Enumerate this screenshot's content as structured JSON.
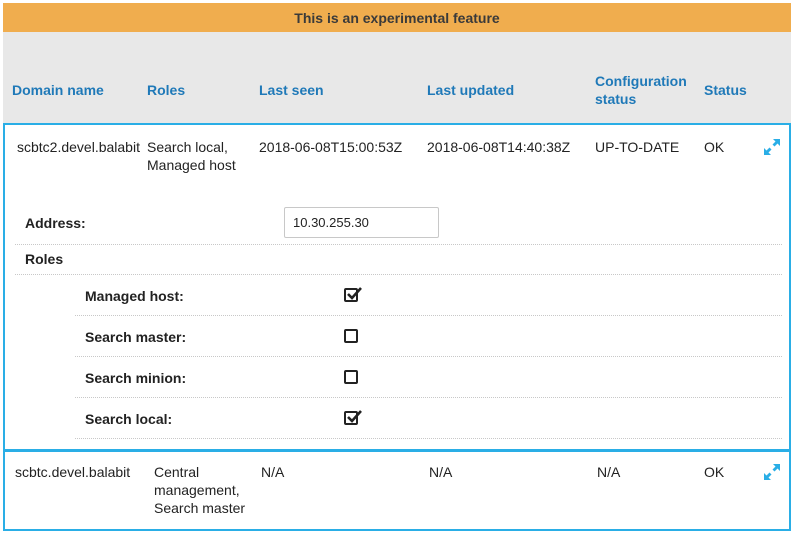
{
  "banner": {
    "text": "This is an experimental feature"
  },
  "table": {
    "headers": {
      "domain_name": "Domain name",
      "roles": "Roles",
      "last_seen": "Last seen",
      "last_updated": "Last updated",
      "config_line1": "Configuration",
      "config_line2": "status",
      "status": "Status"
    },
    "rows": [
      {
        "domain": "scbtc2.devel.balabit",
        "roles_line1": "Search local,",
        "roles_line2": "Managed host",
        "last_seen": "2018-06-08T15:00:53Z",
        "last_updated": "2018-06-08T14:40:38Z",
        "config_status": "UP-TO-DATE",
        "status": "OK",
        "expanded": true
      },
      {
        "domain": "scbtc.devel.balabit",
        "roles_line1": "Central",
        "roles_line2": "management,",
        "roles_line3": "Search master",
        "last_seen": "N/A",
        "last_updated": "N/A",
        "config_status": "N/A",
        "status": "OK",
        "expanded": false
      }
    ]
  },
  "detail": {
    "address_label": "Address:",
    "address_value": "10.30.255.30",
    "roles_heading": "Roles",
    "roles": [
      {
        "label": "Managed host:",
        "checked": true
      },
      {
        "label": "Search master:",
        "checked": false
      },
      {
        "label": "Search minion:",
        "checked": false
      },
      {
        "label": "Search local:",
        "checked": true
      }
    ]
  },
  "colors": {
    "banner": "#f0ad4e",
    "header_bg": "#e8e8e8",
    "header_text": "#1f79b8",
    "row_border": "#2aaee6",
    "expand_icon": "#2aaee6"
  },
  "icons": {
    "expand": "expand-arrows-icon",
    "check": "check-icon"
  }
}
